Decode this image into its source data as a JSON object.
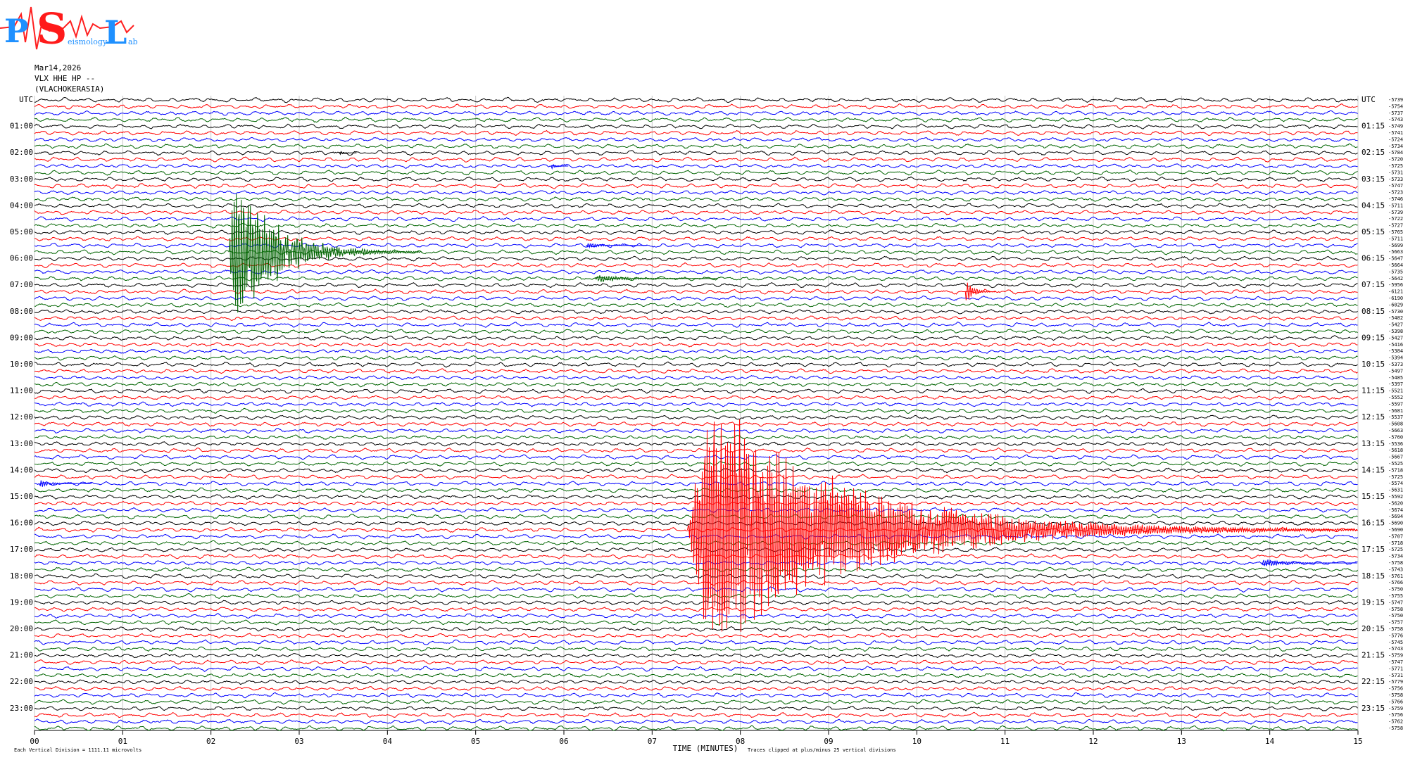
{
  "chart_data": {
    "type": "helicorder",
    "logo": {
      "letters": [
        "P",
        "S",
        "L"
      ],
      "words": [
        "eismology",
        "ab"
      ]
    },
    "title_lines": [
      "Mar14,2026",
      "VLX HHE HP --",
      "(VLACHOKERASIA)"
    ],
    "colors": [
      "#000000",
      "#ff0000",
      "#0000ff",
      "#006400"
    ],
    "left_labels": [
      "UTC",
      "01:00",
      "02:00",
      "03:00",
      "04:00",
      "05:00",
      "06:00",
      "07:00",
      "08:00",
      "09:00",
      "10:00",
      "11:00",
      "12:00",
      "13:00",
      "14:00",
      "15:00",
      "16:00",
      "17:00",
      "18:00",
      "19:00",
      "20:00",
      "21:00",
      "22:00",
      "23:00"
    ],
    "right_labels": [
      "UTC",
      "01:15",
      "02:15",
      "03:15",
      "04:15",
      "05:15",
      "06:15",
      "07:15",
      "08:15",
      "09:15",
      "10:15",
      "11:15",
      "12:15",
      "13:15",
      "14:15",
      "15:15",
      "16:15",
      "17:15",
      "18:15",
      "19:15",
      "20:15",
      "21:15",
      "22:15",
      "23:15"
    ],
    "trace_offsets": [
      -5739,
      -5754,
      -5737,
      -5743,
      -5749,
      -5741,
      -5724,
      -5734,
      -5784,
      -5720,
      -5725,
      -5731,
      -5733,
      -5747,
      -5723,
      -5746,
      -5711,
      -5739,
      -5722,
      -5727,
      -5765,
      -5711,
      -5699,
      -5663,
      -5647,
      -5664,
      -5735,
      -5642,
      -5956,
      -6121,
      -6190,
      -6029,
      -5730,
      -5482,
      -5427,
      -5398,
      -5427,
      -5416,
      -5384,
      -5394,
      -5373,
      -5497,
      -5485,
      -5397,
      -5521,
      -5552,
      -5597,
      -5681,
      -5537,
      -5608,
      -5663,
      -5760,
      -5536,
      -5618,
      -5667,
      -5525,
      -5718,
      -5725,
      -5574,
      -5631,
      -5592,
      -5620,
      -5674,
      -5694,
      -5690,
      -5690,
      -5707,
      -5718,
      -5725,
      -5734,
      -5758,
      -5743,
      -5761,
      -5766,
      -5750,
      -5755,
      -5747,
      -5758,
      -5750,
      -5757,
      -5758,
      -5776,
      -5745,
      -5743,
      -5759,
      -5747,
      -5771,
      -5731,
      -5779,
      -5756,
      -5758,
      -5766,
      -5759,
      -5756,
      -5762,
      -5758
    ],
    "xlim": [
      0,
      15
    ],
    "xticks": [
      {
        "value": 0,
        "label": "00"
      },
      {
        "value": 1,
        "label": "01"
      },
      {
        "value": 2,
        "label": "02"
      },
      {
        "value": 3,
        "label": "03"
      },
      {
        "value": 4,
        "label": "04"
      },
      {
        "value": 5,
        "label": "05"
      },
      {
        "value": 6,
        "label": "06"
      },
      {
        "value": 7,
        "label": "07"
      },
      {
        "value": 8,
        "label": "08"
      },
      {
        "value": 9,
        "label": "09"
      },
      {
        "value": 10,
        "label": "10"
      },
      {
        "value": 11,
        "label": "11"
      },
      {
        "value": 12,
        "label": "12"
      },
      {
        "value": 13,
        "label": "13"
      },
      {
        "value": 14,
        "label": "14"
      },
      15
    ],
    "xlabel": "TIME (MINUTES)",
    "footer_left": "Each Vertical Division = 1111.11 microvolts",
    "footer_right": "Traces clipped at plus/minus 25 vertical divisions",
    "grid": true,
    "events": [
      {
        "trace": 23,
        "start": 2.2,
        "duration": 2.2,
        "amplitude": 16
      },
      {
        "trace": 65,
        "start": 7.4,
        "duration": 7.6,
        "amplitude": 25
      },
      {
        "trace": 29,
        "start": 10.55,
        "duration": 0.35,
        "amplitude": 3
      },
      {
        "trace": 27,
        "start": 6.35,
        "duration": 1.4,
        "amplitude": 0.8
      },
      {
        "trace": 22,
        "start": 6.25,
        "duration": 0.7,
        "amplitude": 0.6
      },
      {
        "trace": 58,
        "start": 0.05,
        "duration": 0.6,
        "amplitude": 0.7
      },
      {
        "trace": 70,
        "start": 13.9,
        "duration": 1.1,
        "amplitude": 0.8
      },
      {
        "trace": 8,
        "start": 3.45,
        "duration": 0.2,
        "amplitude": 0.6
      },
      {
        "trace": 10,
        "start": 5.85,
        "duration": 0.2,
        "amplitude": 0.7
      }
    ]
  }
}
